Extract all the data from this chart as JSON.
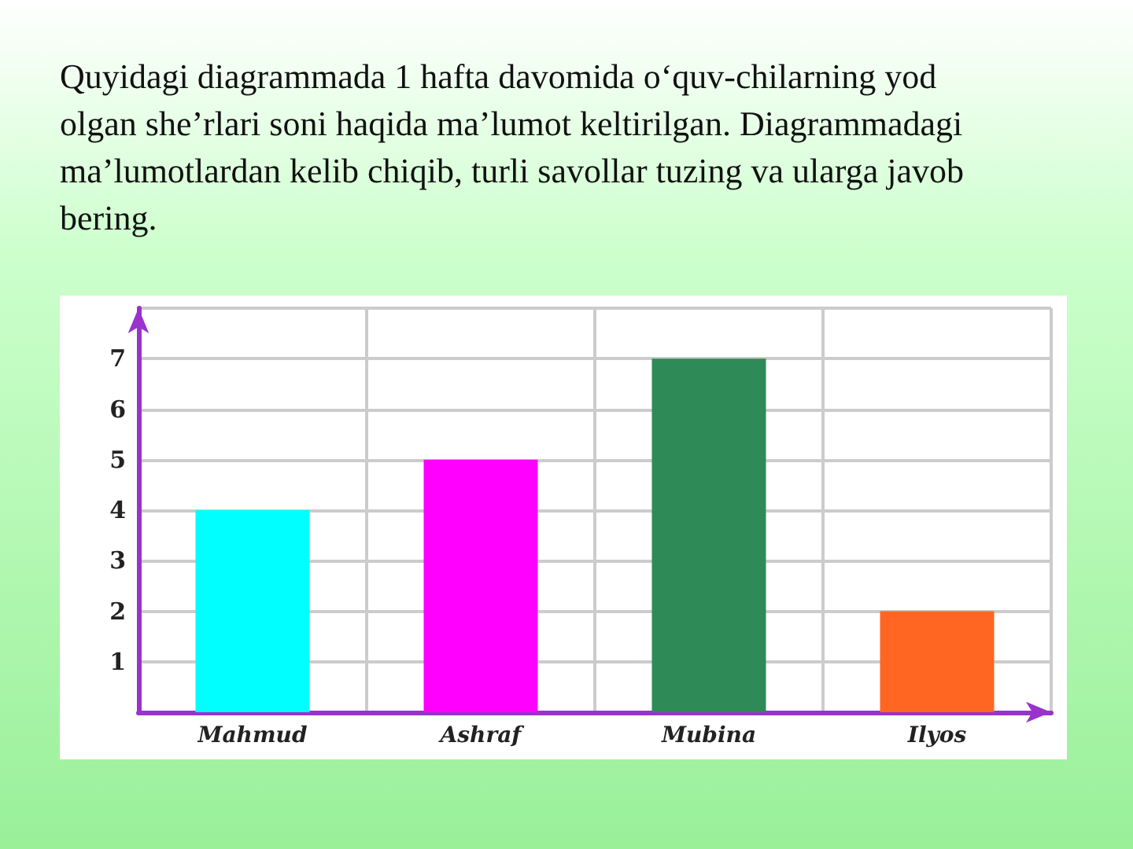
{
  "chart_data": {
    "type": "bar",
    "title": "Quyidagi diagrammada 1 hafta davomida o‘quv-chilarning yod olgan she’rlari soni haqida ma’lumot keltirilgan. Diagrammadagi ma’lumotlardan kelib chiqib, turli savollar tuzing va ularga javob bering.",
    "categories": [
      "Mahmud",
      "Ashraf",
      "Mubina",
      "Ilyos"
    ],
    "values": [
      4,
      5,
      7,
      2
    ],
    "colors": [
      "#00ffff",
      "#ff00ff",
      "#2e8b57",
      "#ff6622"
    ],
    "ylim": [
      0,
      8
    ],
    "yticks": [
      {
        "value": 0,
        "label": null
      },
      1,
      2,
      3,
      4,
      5,
      6,
      7,
      {
        "value": 8,
        "label": null
      }
    ],
    "grid": true
  }
}
